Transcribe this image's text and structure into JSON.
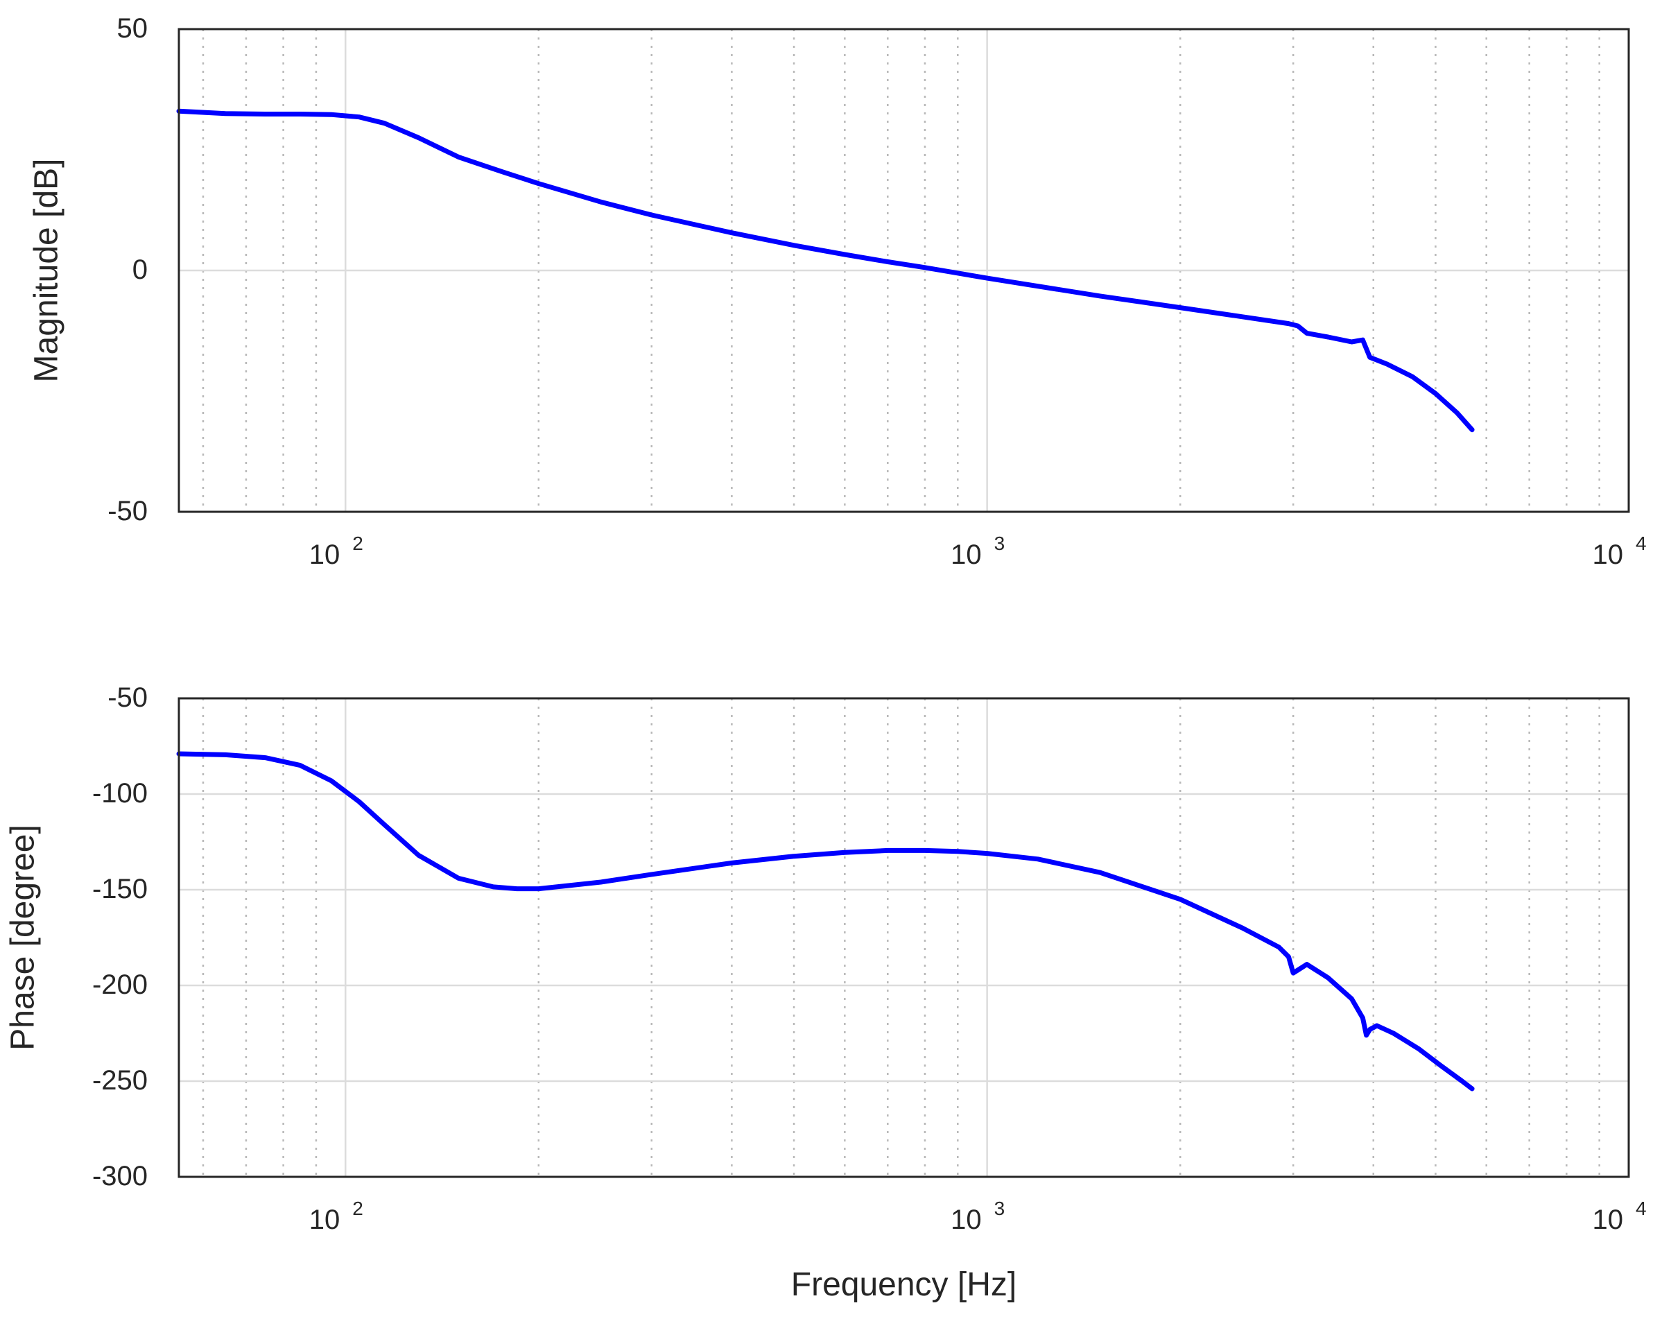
{
  "chart_data": [
    {
      "type": "line",
      "panel": "magnitude",
      "xscale": "log",
      "xlim": [
        55,
        10000
      ],
      "ylim": [
        -50,
        50
      ],
      "yticks": [
        50,
        0,
        -50
      ],
      "xticks": [
        100,
        1000,
        10000
      ],
      "xtick_labels": [
        {
          "base": "10",
          "exp": "2"
        },
        {
          "base": "10",
          "exp": "3"
        },
        {
          "base": "10",
          "exp": "4"
        }
      ],
      "grid": true,
      "xlabel": "",
      "ylabel": "Magnitude [dB]",
      "series": [
        {
          "color": "#0000ff",
          "x": [
            55,
            65,
            75,
            85,
            95,
            105,
            115,
            130,
            150,
            175,
            200,
            250,
            300,
            400,
            500,
            600,
            700,
            800,
            1000,
            1500,
            2000,
            2500,
            2950,
            3050,
            3150,
            3400,
            3700,
            3850,
            3950,
            4200,
            4600,
            5000,
            5400,
            5700
          ],
          "y": [
            33,
            32.5,
            32.4,
            32.4,
            32.3,
            31.8,
            30.5,
            27.5,
            23.5,
            20.5,
            18,
            14.2,
            11.5,
            7.8,
            5.2,
            3.3,
            1.8,
            0.6,
            -1.6,
            -5.3,
            -7.7,
            -9.6,
            -11,
            -11.5,
            -13,
            -13.8,
            -14.8,
            -14.4,
            -18,
            -19.4,
            -22,
            -25.5,
            -29.5,
            -33
          ]
        }
      ]
    },
    {
      "type": "line",
      "panel": "phase",
      "xscale": "log",
      "xlim": [
        55,
        10000
      ],
      "ylim": [
        -300,
        -50
      ],
      "yticks": [
        -50,
        -100,
        -150,
        -200,
        -250,
        -300
      ],
      "xticks": [
        100,
        1000,
        10000
      ],
      "xtick_labels": [
        {
          "base": "10",
          "exp": "2"
        },
        {
          "base": "10",
          "exp": "3"
        },
        {
          "base": "10",
          "exp": "4"
        }
      ],
      "grid": true,
      "xlabel": "Frequency [Hz]",
      "ylabel": "Phase [degree]",
      "series": [
        {
          "color": "#0000ff",
          "x": [
            55,
            65,
            75,
            85,
            95,
            105,
            115,
            130,
            150,
            170,
            185,
            200,
            250,
            300,
            400,
            500,
            600,
            700,
            800,
            900,
            1000,
            1200,
            1500,
            2000,
            2500,
            2850,
            2950,
            3000,
            3050,
            3150,
            3400,
            3700,
            3850,
            3900,
            3950,
            4050,
            4300,
            4700,
            5100,
            5500,
            5700
          ],
          "y": [
            -79,
            -79.5,
            -81,
            -85,
            -93,
            -104,
            -116,
            -132,
            -144,
            -148.5,
            -149.5,
            -149.5,
            -146,
            -142,
            -136,
            -132.5,
            -130.5,
            -129.5,
            -129.5,
            -130,
            -131,
            -134,
            -141,
            -155,
            -170,
            -180,
            -185,
            -193.5,
            -192,
            -189,
            -196,
            -207,
            -217,
            -226,
            -223,
            -221,
            -225,
            -233,
            -242,
            -250,
            -254
          ]
        }
      ]
    }
  ]
}
